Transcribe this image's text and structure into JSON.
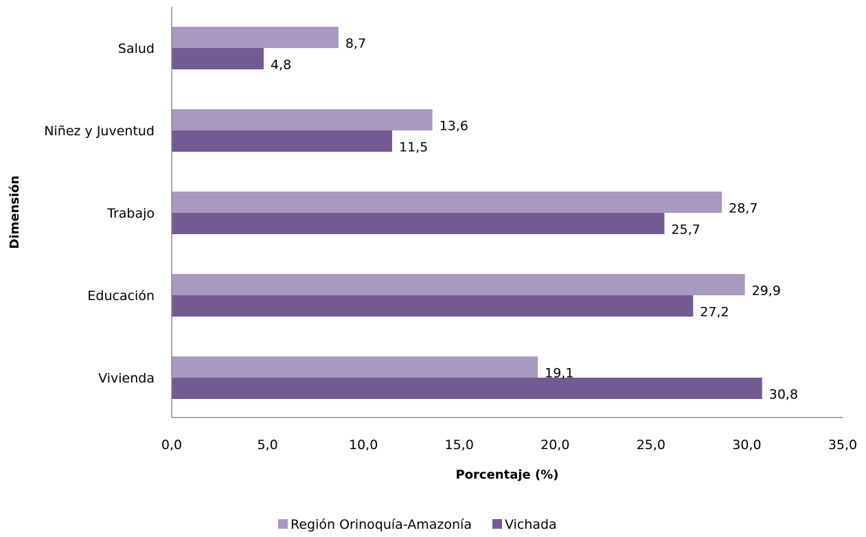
{
  "chart_data": {
    "type": "bar",
    "orientation": "horizontal",
    "categories": [
      "Salud",
      "Niñez y Juventud",
      "Trabajo",
      "Educación",
      "Vivienda"
    ],
    "series": [
      {
        "name": "Región Orinoquía-Amazonía",
        "color": "#a999c1",
        "values": [
          8.7,
          13.6,
          28.7,
          29.9,
          19.1
        ],
        "labels": [
          "8,7",
          "13,6",
          "28,7",
          "29,9",
          "19,1"
        ]
      },
      {
        "name": "Vichada",
        "color": "#735a92",
        "values": [
          4.8,
          11.5,
          25.7,
          27.2,
          30.8
        ],
        "labels": [
          "4,8",
          "11,5",
          "25,7",
          "27,2",
          "30,8"
        ]
      }
    ],
    "xlabel": "Porcentaje (%)",
    "ylabel": "Dimensión",
    "xlim": [
      0,
      35
    ],
    "xticks": [
      0,
      5,
      10,
      15,
      20,
      25,
      30,
      35
    ],
    "xtick_labels": [
      "0,0",
      "5,0",
      "10,0",
      "15,0",
      "20,0",
      "25,0",
      "30,0",
      "35,0"
    ],
    "grid": false,
    "legend": "bottom"
  }
}
